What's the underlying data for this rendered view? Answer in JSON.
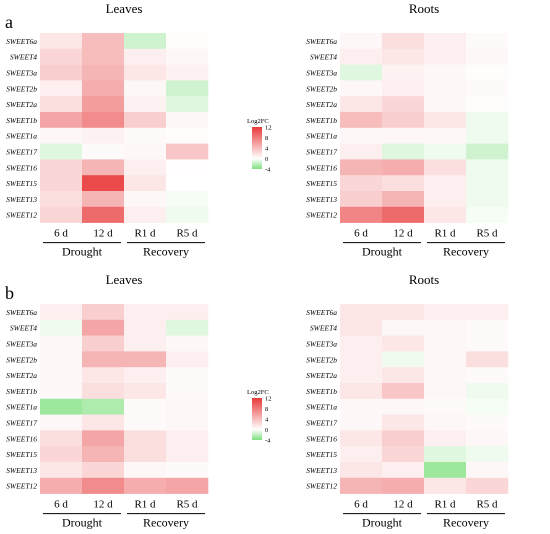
{
  "colors": {
    "low": "#7ee07e",
    "zero": "#ffffff",
    "high": "#e83a3a"
  },
  "colorbar": {
    "title": "Log2FC",
    "range": [
      -4,
      12
    ],
    "ticks": [
      "12",
      "8",
      "4",
      "0",
      "-4"
    ]
  },
  "panels": [
    {
      "letter": "a",
      "charts": [
        {
          "title": "Leaves",
          "genes": [
            "SWEET6a",
            "SWEET4",
            "SWEET3a",
            "SWEET2b",
            "SWEET2a",
            "SWEET1b",
            "SWEET1a",
            "SWEET17",
            "SWEET16",
            "SWEET15",
            "SWEET13",
            "SWEET12"
          ],
          "columns": [
            "6 d",
            "12 d",
            "R1 d",
            "R5 d"
          ],
          "groups": [
            "Drought",
            "Recovery"
          ],
          "values": [
            [
              1.5,
              4.0,
              -1.5,
              0.2
            ],
            [
              2.5,
              4.0,
              1.0,
              0.5
            ],
            [
              3.0,
              4.5,
              1.5,
              0.8
            ],
            [
              1.0,
              5.0,
              0.5,
              -1.5
            ],
            [
              2.0,
              6.0,
              0.8,
              -1.0
            ],
            [
              5.5,
              7.0,
              3.0,
              0.5
            ],
            [
              0.5,
              0.8,
              0.3,
              0.2
            ],
            [
              -1.0,
              0.3,
              0.5,
              3.5
            ],
            [
              2.5,
              4.5,
              1.0,
              0.1
            ],
            [
              2.5,
              11.0,
              1.5,
              0.0
            ],
            [
              2.0,
              4.5,
              0.5,
              -0.3
            ],
            [
              2.5,
              9.0,
              1.0,
              -0.5
            ]
          ]
        },
        {
          "title": "Roots",
          "genes": [
            "SWEET6a",
            "SWEET4",
            "SWEET3a",
            "SWEET2b",
            "SWEET2a",
            "SWEET1b",
            "SWEET1a",
            "SWEET17",
            "SWEET16",
            "SWEET15",
            "SWEET13",
            "SWEET12"
          ],
          "columns": [
            "6 d",
            "12 d",
            "R1 d",
            "R5 d"
          ],
          "groups": [
            "Drought",
            "Recovery"
          ],
          "values": [
            [
              0.5,
              2.0,
              1.0,
              0.3
            ],
            [
              1.0,
              1.5,
              1.0,
              0.5
            ],
            [
              -1.0,
              0.8,
              0.5,
              0.2
            ],
            [
              0.5,
              1.0,
              0.5,
              0.3
            ],
            [
              1.5,
              2.5,
              0.5,
              0.2
            ],
            [
              4.0,
              3.0,
              1.5,
              -0.5
            ],
            [
              0.5,
              0.5,
              0.5,
              -0.5
            ],
            [
              1.0,
              -1.0,
              -0.5,
              -1.5
            ],
            [
              4.5,
              5.0,
              2.0,
              -0.5
            ],
            [
              2.5,
              2.0,
              1.0,
              -0.5
            ],
            [
              3.0,
              4.5,
              1.0,
              -0.5
            ],
            [
              7.5,
              9.0,
              1.5,
              -0.3
            ]
          ]
        }
      ]
    },
    {
      "letter": "b",
      "charts": [
        {
          "title": "Leaves",
          "genes": [
            "SWEET6a",
            "SWEET4",
            "SWEET3a",
            "SWEET2b",
            "SWEET2a",
            "SWEET1b",
            "SWEET1a",
            "SWEET17",
            "SWEET16",
            "SWEET15",
            "SWEET13",
            "SWEET12"
          ],
          "columns": [
            "6 d",
            "12 d",
            "R1 d",
            "R5 d"
          ],
          "groups": [
            "Drought",
            "Recovery"
          ],
          "values": [
            [
              1.0,
              3.0,
              1.0,
              1.0
            ],
            [
              -0.5,
              5.5,
              1.0,
              -1.0
            ],
            [
              0.5,
              3.0,
              1.0,
              0.5
            ],
            [
              0.5,
              4.5,
              4.5,
              1.0
            ],
            [
              0.5,
              1.5,
              1.0,
              0.3
            ],
            [
              0.5,
              2.0,
              1.5,
              0.3
            ],
            [
              -3.0,
              -2.5,
              0.3,
              0.5
            ],
            [
              0.5,
              1.5,
              0.3,
              0.5
            ],
            [
              2.0,
              5.5,
              2.0,
              1.0
            ],
            [
              2.5,
              4.5,
              2.0,
              1.0
            ],
            [
              1.5,
              2.5,
              0.5,
              0.3
            ],
            [
              5.0,
              7.0,
              5.0,
              5.5
            ]
          ]
        },
        {
          "title": "Roots",
          "genes": [
            "SWEET6a",
            "SWEET4",
            "SWEET3a",
            "SWEET2b",
            "SWEET2a",
            "SWEET1b",
            "SWEET1a",
            "SWEET17",
            "SWEET16",
            "SWEET15",
            "SWEET13",
            "SWEET12"
          ],
          "columns": [
            "6 d",
            "12 d",
            "R1 d",
            "R5 d"
          ],
          "groups": [
            "Drought",
            "Recovery"
          ],
          "values": [
            [
              1.5,
              1.5,
              1.0,
              1.0
            ],
            [
              1.5,
              0.5,
              0.5,
              0.3
            ],
            [
              1.0,
              1.5,
              0.5,
              0.3
            ],
            [
              1.0,
              -0.5,
              0.5,
              2.0
            ],
            [
              1.0,
              1.5,
              0.5,
              0.3
            ],
            [
              1.5,
              3.5,
              0.5,
              -0.5
            ],
            [
              0.5,
              0.5,
              0.3,
              -0.3
            ],
            [
              0.5,
              1.5,
              0.5,
              0.3
            ],
            [
              1.5,
              3.0,
              1.0,
              0.5
            ],
            [
              1.0,
              2.5,
              -1.0,
              -0.5
            ],
            [
              1.5,
              1.0,
              -3.0,
              0.5
            ],
            [
              4.5,
              5.0,
              1.5,
              2.5
            ]
          ]
        }
      ]
    }
  ],
  "chart_data": [
    {
      "type": "heatmap",
      "title": "Leaves",
      "panel": "a",
      "x": [
        "6 d",
        "12 d",
        "R1 d",
        "R5 d"
      ],
      "y": [
        "SWEET6a",
        "SWEET4",
        "SWEET3a",
        "SWEET2b",
        "SWEET2a",
        "SWEET1b",
        "SWEET1a",
        "SWEET17",
        "SWEET16",
        "SWEET15",
        "SWEET13",
        "SWEET12"
      ],
      "legend_title": "Log2FC",
      "range": [
        -4,
        12
      ]
    },
    {
      "type": "heatmap",
      "title": "Roots",
      "panel": "a",
      "x": [
        "6 d",
        "12 d",
        "R1 d",
        "R5 d"
      ],
      "y": [
        "SWEET6a",
        "SWEET4",
        "SWEET3a",
        "SWEET2b",
        "SWEET2a",
        "SWEET1b",
        "SWEET1a",
        "SWEET17",
        "SWEET16",
        "SWEET15",
        "SWEET13",
        "SWEET12"
      ],
      "legend_title": "Log2FC",
      "range": [
        -4,
        12
      ]
    },
    {
      "type": "heatmap",
      "title": "Leaves",
      "panel": "b",
      "x": [
        "6 d",
        "12 d",
        "R1 d",
        "R5 d"
      ],
      "y": [
        "SWEET6a",
        "SWEET4",
        "SWEET3a",
        "SWEET2b",
        "SWEET2a",
        "SWEET1b",
        "SWEET1a",
        "SWEET17",
        "SWEET16",
        "SWEET15",
        "SWEET13",
        "SWEET12"
      ],
      "legend_title": "Log2FC",
      "range": [
        -4,
        12
      ]
    },
    {
      "type": "heatmap",
      "title": "Roots",
      "panel": "b",
      "x": [
        "6 d",
        "12 d",
        "R1 d",
        "R5 d"
      ],
      "y": [
        "SWEET6a",
        "SWEET4",
        "SWEET3a",
        "SWEET2b",
        "SWEET2a",
        "SWEET1b",
        "SWEET1a",
        "SWEET17",
        "SWEET16",
        "SWEET15",
        "SWEET13",
        "SWEET12"
      ],
      "legend_title": "Log2FC",
      "range": [
        -4,
        12
      ]
    }
  ]
}
